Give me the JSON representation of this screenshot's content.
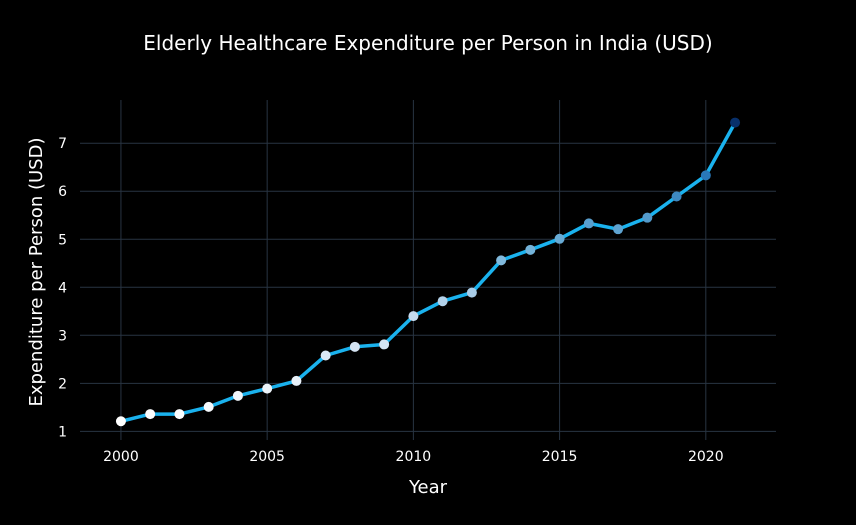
{
  "chart_data": {
    "type": "line",
    "title": "Elderly Healthcare Expenditure per Person in India (USD)",
    "xlabel": "Year",
    "ylabel": "Expenditure per Person (USD)",
    "x": [
      2000,
      2001,
      2002,
      2003,
      2004,
      2005,
      2006,
      2007,
      2008,
      2009,
      2010,
      2011,
      2012,
      2013,
      2014,
      2015,
      2016,
      2017,
      2018,
      2019,
      2020,
      2021
    ],
    "series": [
      {
        "values": [
          1.21,
          1.36,
          1.36,
          1.51,
          1.74,
          1.89,
          2.05,
          2.58,
          2.76,
          2.81,
          3.4,
          3.71,
          3.89,
          4.56,
          4.78,
          5.01,
          5.33,
          5.21,
          5.45,
          5.89,
          6.33,
          7.43
        ]
      }
    ],
    "xlim": [
      1998.6,
      2022.4
    ],
    "ylim": [
      0.82,
      7.9
    ],
    "x_ticks": [
      2000,
      2005,
      2010,
      2015,
      2020
    ],
    "y_ticks": [
      1,
      2,
      3,
      4,
      5,
      6,
      7
    ],
    "grid": true,
    "colors": {
      "background": "#000000",
      "grid": "#283442",
      "line": "#1ab2ee",
      "marker_low": "#ffffff",
      "marker_high": "#08306b"
    }
  }
}
